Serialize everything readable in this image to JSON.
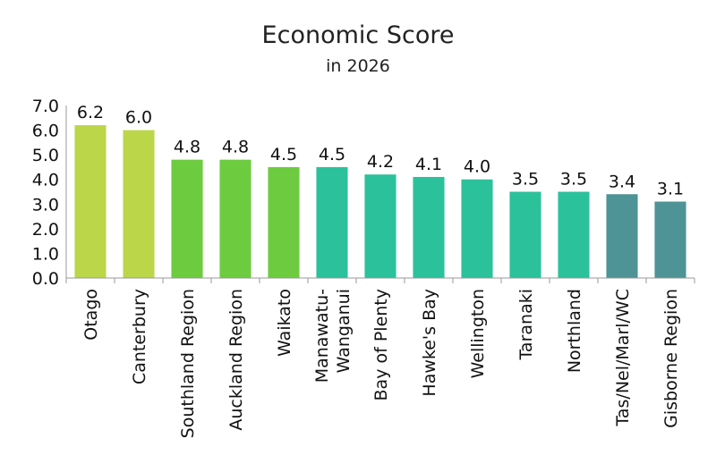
{
  "chart_data": {
    "type": "bar",
    "title": "Economic Score",
    "subtitle": "in 2026",
    "xlabel": "",
    "ylabel": "",
    "ylim": [
      0,
      7
    ],
    "yticks": [
      "0.0",
      "1.0",
      "2.0",
      "3.0",
      "4.0",
      "5.0",
      "6.0",
      "7.0"
    ],
    "grid": false,
    "legend": "none",
    "categories": [
      [
        "Otago"
      ],
      [
        "Canterbury"
      ],
      [
        "Southland Region"
      ],
      [
        "Auckland Region"
      ],
      [
        "Waikato"
      ],
      [
        "Manawatu-",
        "Wanganui"
      ],
      [
        "Bay of Plenty"
      ],
      [
        "Hawke's Bay"
      ],
      [
        "Wellington"
      ],
      [
        "Taranaki"
      ],
      [
        "Northland"
      ],
      [
        "Tas/Nel/Marl/WC"
      ],
      [
        "Gisborne Region"
      ]
    ],
    "values": [
      6.2,
      6.0,
      4.8,
      4.8,
      4.5,
      4.5,
      4.2,
      4.1,
      4.0,
      3.5,
      3.5,
      3.4,
      3.1
    ],
    "data_labels": [
      "6.2",
      "6.0",
      "4.8",
      "4.8",
      "4.5",
      "4.5",
      "4.2",
      "4.1",
      "4.0",
      "3.5",
      "3.5",
      "3.4",
      "3.1"
    ],
    "colors": [
      "#bcd64a",
      "#bcd64a",
      "#6dcb3f",
      "#6dcb3f",
      "#6dcb3f",
      "#2bc19b",
      "#2bc19b",
      "#2bc19b",
      "#2bc19b",
      "#2bc19b",
      "#2bc19b",
      "#4e9395",
      "#4e9395"
    ]
  }
}
